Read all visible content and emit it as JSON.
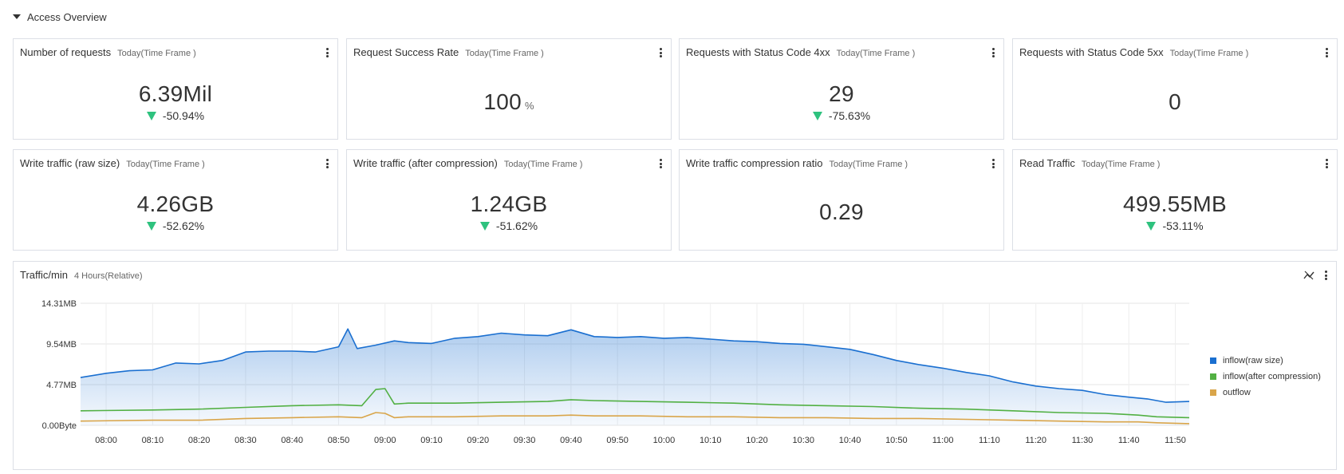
{
  "section": {
    "title": "Access Overview"
  },
  "cards": [
    {
      "title": "Number of requests",
      "subtitle": "Today(Time Frame )",
      "value": "6.39Mil",
      "unit": "",
      "delta": "-50.94%"
    },
    {
      "title": "Request Success Rate",
      "subtitle": "Today(Time Frame )",
      "value": "100",
      "unit": "%",
      "delta": ""
    },
    {
      "title": "Requests with Status Code 4xx",
      "subtitle": "Today(Time Frame )",
      "value": "29",
      "unit": "",
      "delta": "-75.63%"
    },
    {
      "title": "Requests with Status Code 5xx",
      "subtitle": "Today(Time Frame )",
      "value": "0",
      "unit": "",
      "delta": ""
    },
    {
      "title": "Write traffic (raw size)",
      "subtitle": "Today(Time Frame )",
      "value": "4.26GB",
      "unit": "",
      "delta": "-52.62%"
    },
    {
      "title": "Write traffic (after compression)",
      "subtitle": "Today(Time Frame )",
      "value": "1.24GB",
      "unit": "",
      "delta": "-51.62%"
    },
    {
      "title": "Write traffic compression ratio",
      "subtitle": "Today(Time Frame )",
      "value": "0.29",
      "unit": "",
      "delta": ""
    },
    {
      "title": "Read Traffic",
      "subtitle": "Today(Time Frame )",
      "value": "499.55MB",
      "unit": "",
      "delta": "-53.11%"
    }
  ],
  "chart_data": {
    "type": "area",
    "title": "Traffic/min",
    "subtitle": "4 Hours(Relative)",
    "y_ticks": [
      "0.00Byte",
      "4.77MB",
      "9.54MB",
      "14.31MB"
    ],
    "y_tick_values": [
      0,
      4.77,
      9.54,
      14.31
    ],
    "ylim": [
      0,
      14.31
    ],
    "x_ticks": [
      "08:00",
      "08:10",
      "08:20",
      "08:30",
      "08:40",
      "08:50",
      "09:00",
      "09:10",
      "09:20",
      "09:30",
      "09:40",
      "09:50",
      "10:00",
      "10:10",
      "10:20",
      "10:30",
      "10:40",
      "10:50",
      "11:00",
      "11:10",
      "11:20",
      "11:30",
      "11:40",
      "11:50"
    ],
    "xlim": [
      -5.5,
      233
    ],
    "colors": {
      "inflow_raw": "#1a6fd0",
      "inflow_comp": "#52b043",
      "outflow": "#d9a54a"
    },
    "series": [
      {
        "name": "inflow(raw size)",
        "key": "inflow_raw",
        "x": [
          -5.5,
          0,
          5,
          10,
          15,
          20,
          25,
          30,
          35,
          40,
          45,
          50,
          52,
          54,
          58,
          62,
          65,
          70,
          75,
          80,
          85,
          90,
          95,
          100,
          105,
          110,
          115,
          120,
          125,
          130,
          135,
          140,
          145,
          150,
          155,
          160,
          165,
          170,
          175,
          180,
          185,
          190,
          195,
          200,
          205,
          210,
          215,
          220,
          224,
          226,
          228,
          233
        ],
        "values": [
          5.6,
          6.1,
          6.4,
          6.5,
          7.3,
          7.2,
          7.6,
          8.6,
          8.7,
          8.7,
          8.6,
          9.2,
          11.3,
          9.0,
          9.4,
          9.9,
          9.7,
          9.6,
          10.2,
          10.4,
          10.8,
          10.6,
          10.5,
          11.2,
          10.4,
          10.3,
          10.4,
          10.2,
          10.3,
          10.1,
          9.9,
          9.8,
          9.6,
          9.5,
          9.2,
          8.9,
          8.3,
          7.6,
          7.1,
          6.7,
          6.2,
          5.8,
          5.1,
          4.6,
          4.3,
          4.1,
          3.6,
          3.3,
          3.1,
          2.9,
          2.7,
          2.8
        ]
      },
      {
        "name": "inflow(after compression)",
        "key": "inflow_comp",
        "x": [
          -5.5,
          10,
          20,
          30,
          40,
          50,
          55,
          58,
          60,
          62,
          65,
          75,
          85,
          95,
          100,
          105,
          115,
          125,
          135,
          145,
          155,
          165,
          175,
          185,
          195,
          205,
          215,
          222,
          226,
          233
        ],
        "values": [
          1.7,
          1.8,
          1.9,
          2.1,
          2.3,
          2.4,
          2.3,
          4.2,
          4.3,
          2.5,
          2.6,
          2.6,
          2.7,
          2.8,
          3.0,
          2.9,
          2.8,
          2.7,
          2.6,
          2.4,
          2.3,
          2.2,
          2.0,
          1.9,
          1.7,
          1.5,
          1.4,
          1.2,
          1.0,
          0.9
        ]
      },
      {
        "name": "outflow",
        "key": "outflow",
        "x": [
          -5.5,
          10,
          20,
          30,
          40,
          50,
          55,
          58,
          60,
          62,
          65,
          75,
          85,
          95,
          100,
          105,
          115,
          125,
          135,
          145,
          155,
          165,
          175,
          185,
          195,
          205,
          215,
          222,
          226,
          233
        ],
        "values": [
          0.5,
          0.6,
          0.6,
          0.8,
          0.9,
          1.0,
          0.9,
          1.5,
          1.4,
          0.9,
          1.0,
          1.0,
          1.1,
          1.1,
          1.2,
          1.1,
          1.1,
          1.0,
          1.0,
          0.9,
          0.9,
          0.8,
          0.8,
          0.7,
          0.6,
          0.5,
          0.4,
          0.4,
          0.3,
          0.2
        ]
      }
    ]
  }
}
